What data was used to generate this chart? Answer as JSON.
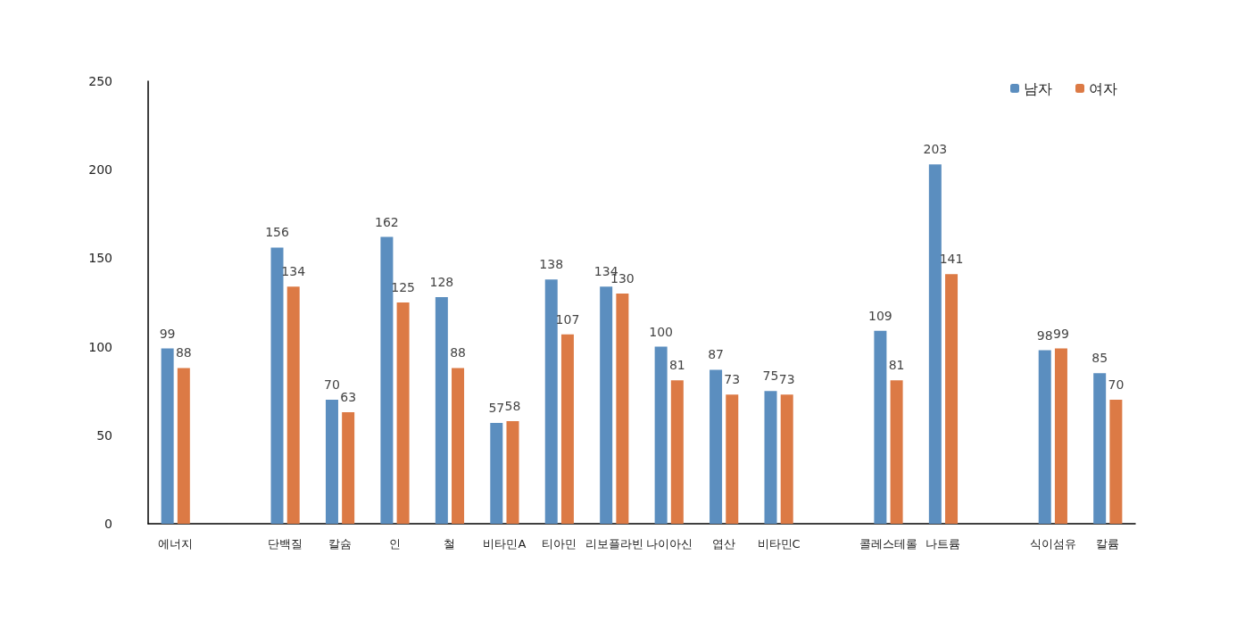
{
  "chart_data": {
    "type": "bar",
    "categories": [
      "에너지",
      null,
      "단백질",
      "칼슘",
      "인",
      "철",
      "비타민A",
      "티아민",
      "리보플라빈",
      "나이아신",
      "엽산",
      "비타민C",
      null,
      "콜레스테롤",
      "나트륨",
      null,
      "식이섬유",
      "칼륨"
    ],
    "series": [
      {
        "name": "남자",
        "color": "#5b8ebf",
        "values": [
          99,
          null,
          156,
          70,
          162,
          128,
          57,
          138,
          134,
          100,
          87,
          75,
          null,
          109,
          203,
          null,
          98,
          85
        ]
      },
      {
        "name": "여자",
        "color": "#dc7a45",
        "values": [
          88,
          null,
          134,
          63,
          125,
          88,
          58,
          107,
          130,
          81,
          73,
          73,
          null,
          81,
          141,
          null,
          99,
          70
        ]
      }
    ],
    "ylim": [
      0,
      250
    ],
    "yticks": [
      0,
      50,
      100,
      150,
      200,
      250
    ],
    "grid": false,
    "legend": "top right",
    "data_labels": true
  }
}
